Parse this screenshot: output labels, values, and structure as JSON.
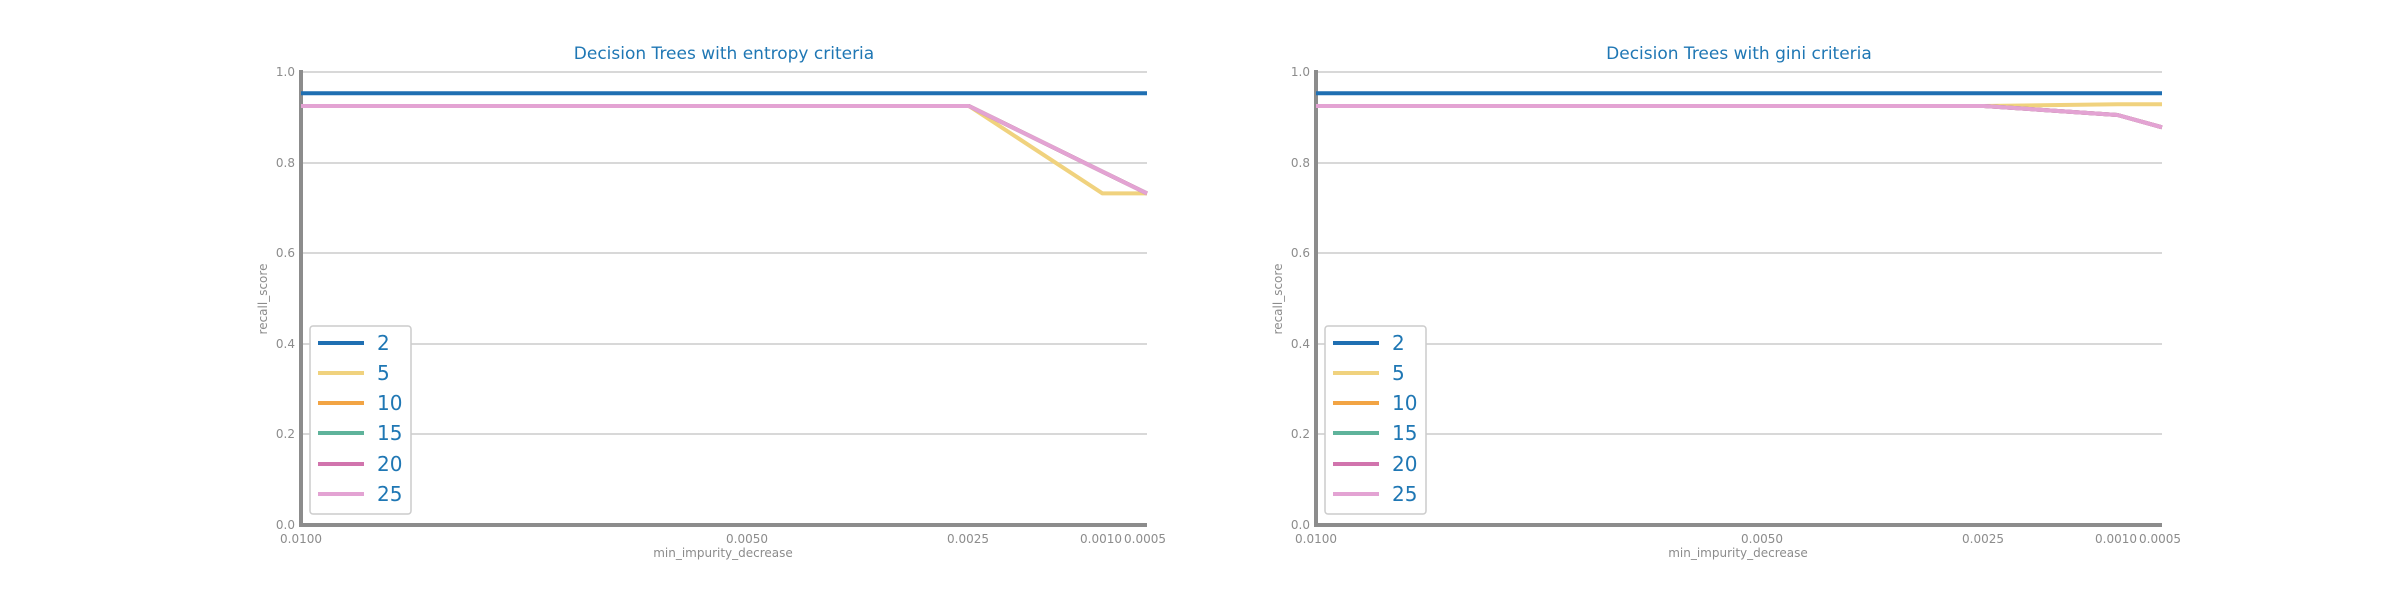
{
  "chart_data": [
    {
      "type": "line",
      "title": "Decision Trees with entropy criteria",
      "xlabel": "min_impurity_decrease",
      "ylabel": "recall_score",
      "ylim": [
        0,
        1
      ],
      "yticks": [
        "0.0",
        "0.2",
        "0.4",
        "0.6",
        "0.8",
        "1.0"
      ],
      "x": [
        "0.0100",
        "0.0050",
        "0.0025",
        "0.0010",
        "0.0005"
      ],
      "x_axis_inverted": true,
      "grid": "horizontal",
      "legend_position": "lower-left",
      "series": [
        {
          "name": "2",
          "color": "#1f6fb2",
          "values": [
            0.953,
            0.953,
            0.953,
            0.953,
            0.953
          ]
        },
        {
          "name": "5",
          "color": "#f0d27e",
          "values": [
            0.925,
            0.925,
            0.925,
            0.732,
            0.732
          ]
        },
        {
          "name": "10",
          "color": "#f2a444",
          "values": [
            0.925,
            0.925,
            0.925,
            0.78,
            0.732
          ]
        },
        {
          "name": "15",
          "color": "#5fb39b",
          "values": [
            0.925,
            0.925,
            0.925,
            0.78,
            0.732
          ]
        },
        {
          "name": "20",
          "color": "#d174ad",
          "values": [
            0.925,
            0.925,
            0.925,
            0.78,
            0.732
          ]
        },
        {
          "name": "25",
          "color": "#e3a3d3",
          "values": [
            0.925,
            0.925,
            0.925,
            0.78,
            0.732
          ]
        }
      ]
    },
    {
      "type": "line",
      "title": "Decision Trees with gini criteria",
      "xlabel": "min_impurity_decrease",
      "ylabel": "recall_score",
      "ylim": [
        0,
        1
      ],
      "yticks": [
        "0.0",
        "0.2",
        "0.4",
        "0.6",
        "0.8",
        "1.0"
      ],
      "x": [
        "0.0100",
        "0.0050",
        "0.0025",
        "0.0010",
        "0.0005"
      ],
      "x_axis_inverted": true,
      "grid": "horizontal",
      "legend_position": "lower-left",
      "series": [
        {
          "name": "2",
          "color": "#1f6fb2",
          "values": [
            0.953,
            0.953,
            0.953,
            0.953,
            0.953
          ]
        },
        {
          "name": "5",
          "color": "#f0d27e",
          "values": [
            0.925,
            0.925,
            0.925,
            0.929,
            0.929
          ]
        },
        {
          "name": "10",
          "color": "#f2a444",
          "values": [
            0.925,
            0.925,
            0.925,
            0.905,
            0.878
          ]
        },
        {
          "name": "15",
          "color": "#5fb39b",
          "values": [
            0.925,
            0.925,
            0.925,
            0.905,
            0.878
          ]
        },
        {
          "name": "20",
          "color": "#d174ad",
          "values": [
            0.925,
            0.925,
            0.925,
            0.905,
            0.878
          ]
        },
        {
          "name": "25",
          "color": "#e3a3d3",
          "values": [
            0.925,
            0.925,
            0.925,
            0.905,
            0.878
          ]
        }
      ]
    }
  ]
}
